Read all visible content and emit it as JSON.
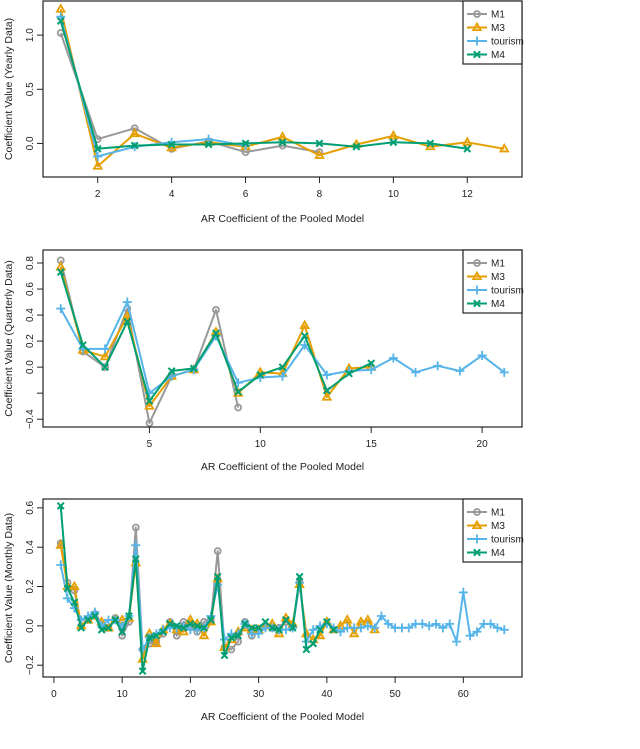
{
  "chart_data": [
    {
      "type": "line",
      "xlabel": "AR Coefficient of the Pooled Model",
      "ylabel": "Coefficient Value (Yearly Data)",
      "xlim": [
        0.52,
        13.48
      ],
      "ylim": [
        -0.31,
        1.315
      ],
      "xticks": [
        2,
        4,
        6,
        8,
        10,
        12
      ],
      "xtick_labels": [
        "2",
        "4",
        "6",
        "8",
        "10",
        "12"
      ],
      "yticks": [
        0.0,
        0.5,
        1.0
      ],
      "ytick_labels": [
        "0.0",
        "0.5",
        "1.0"
      ],
      "grid": false,
      "legend": "top-right",
      "series": [
        {
          "name": "M1",
          "color": "#999999",
          "marker": "circle",
          "x": [
            1,
            2,
            3,
            4,
            5,
            6,
            7,
            8
          ],
          "values": [
            1.02,
            0.04,
            0.14,
            -0.05,
            0.02,
            -0.08,
            -0.02,
            -0.08
          ]
        },
        {
          "name": "M3",
          "color": "#E69F00",
          "marker": "triangle",
          "x": [
            1,
            2,
            3,
            4,
            5,
            6,
            7,
            8,
            9,
            10,
            11,
            12,
            13
          ],
          "values": [
            1.24,
            -0.21,
            0.09,
            -0.04,
            0.01,
            -0.03,
            0.06,
            -0.11,
            -0.01,
            0.07,
            -0.03,
            0.01,
            -0.05
          ]
        },
        {
          "name": "tourism",
          "color": "#56B4E9",
          "marker": "plus",
          "x": [
            1,
            2,
            3,
            4,
            5,
            6
          ],
          "values": [
            1.17,
            -0.12,
            -0.03,
            0.01,
            0.04,
            -0.02
          ]
        },
        {
          "name": "M4",
          "color": "#009E73",
          "marker": "cross",
          "x": [
            1,
            2,
            3,
            4,
            5,
            6,
            7,
            8,
            9,
            10,
            11,
            12
          ],
          "values": [
            1.13,
            -0.05,
            -0.02,
            -0.01,
            -0.01,
            0.0,
            0.01,
            0.0,
            -0.03,
            0.01,
            0.0,
            -0.05
          ]
        }
      ]
    },
    {
      "type": "line",
      "xlabel": "AR Coefficient of the Pooled Model",
      "ylabel": "Coefficient Value (Quarterly Data)",
      "xlim": [
        0.2,
        21.8
      ],
      "ylim": [
        -0.46,
        0.9
      ],
      "xticks": [
        5,
        10,
        15,
        20
      ],
      "xtick_labels": [
        "5",
        "10",
        "15",
        "20"
      ],
      "yticks": [
        -0.4,
        -0.2,
        0.0,
        0.2,
        0.4,
        0.6,
        0.8
      ],
      "ytick_labels": [
        "−0.4",
        "",
        "0.0",
        "0.2",
        "0.4",
        "0.6",
        "0.8"
      ],
      "grid": false,
      "legend": "top-right",
      "series": [
        {
          "name": "M1",
          "color": "#999999",
          "marker": "circle",
          "x": [
            1,
            2,
            3,
            4,
            5,
            6,
            7,
            8,
            9
          ],
          "values": [
            0.82,
            0.12,
            0.0,
            0.45,
            -0.43,
            -0.07,
            -0.02,
            0.44,
            -0.31
          ]
        },
        {
          "name": "M3",
          "color": "#E69F00",
          "marker": "triangle",
          "x": [
            1,
            2,
            3,
            4,
            5,
            6,
            7,
            8,
            9,
            10,
            11,
            12,
            13,
            14,
            15
          ],
          "values": [
            0.77,
            0.13,
            0.08,
            0.39,
            -0.3,
            -0.07,
            -0.02,
            0.27,
            -0.2,
            -0.04,
            -0.05,
            0.32,
            -0.23,
            -0.01,
            0.0
          ]
        },
        {
          "name": "tourism",
          "color": "#56B4E9",
          "marker": "plus",
          "x": [
            1,
            2,
            3,
            4,
            5,
            6,
            7,
            8,
            9,
            10,
            11,
            12,
            13,
            14,
            15,
            16,
            17,
            18,
            19,
            20,
            21
          ],
          "values": [
            0.45,
            0.14,
            0.14,
            0.5,
            -0.2,
            -0.07,
            -0.02,
            0.24,
            -0.12,
            -0.08,
            -0.07,
            0.17,
            -0.06,
            -0.03,
            -0.02,
            0.07,
            -0.04,
            0.01,
            -0.03,
            0.09,
            -0.04
          ]
        },
        {
          "name": "M4",
          "color": "#009E73",
          "marker": "cross",
          "x": [
            1,
            2,
            3,
            4,
            5,
            6,
            7,
            8,
            9,
            10,
            11,
            12,
            13,
            14,
            15
          ],
          "values": [
            0.73,
            0.17,
            0.0,
            0.35,
            -0.26,
            -0.03,
            -0.01,
            0.26,
            -0.19,
            -0.06,
            0.0,
            0.24,
            -0.18,
            -0.05,
            0.03
          ]
        }
      ]
    },
    {
      "type": "line",
      "xlabel": "AR Coefficient of the Pooled Model",
      "ylabel": "Coefficient Value (Monthly Data)",
      "xlim": [
        -1.6,
        68.6
      ],
      "ylim": [
        -0.26,
        0.645
      ],
      "xticks": [
        0,
        10,
        20,
        30,
        40,
        50,
        60
      ],
      "xtick_labels": [
        "0",
        "10",
        "20",
        "30",
        "40",
        "50",
        "60"
      ],
      "yticks": [
        -0.2,
        0.0,
        0.2,
        0.4,
        0.6
      ],
      "ytick_labels": [
        "−0.2",
        "0.0",
        "0.2",
        "0.4",
        "0.6"
      ],
      "grid": false,
      "legend": "top-right",
      "series": [
        {
          "name": "M1",
          "color": "#999999",
          "marker": "circle",
          "x": [
            1,
            2,
            3,
            4,
            5,
            6,
            7,
            8,
            9,
            10,
            11,
            12,
            13,
            14,
            15,
            16,
            17,
            18,
            19,
            20,
            21,
            22,
            23,
            24,
            25,
            26,
            27,
            28,
            29,
            30,
            31,
            32,
            33,
            34,
            35,
            36
          ],
          "values": [
            0.42,
            0.22,
            0.18,
            0.0,
            0.03,
            0.06,
            0.0,
            -0.01,
            0.04,
            -0.05,
            0.02,
            0.5,
            -0.12,
            -0.09,
            -0.08,
            -0.04,
            0.02,
            -0.05,
            0.02,
            0.0,
            -0.03,
            0.02,
            0.03,
            0.38,
            -0.11,
            -0.12,
            -0.08,
            0.02,
            -0.05,
            -0.02,
            0.0,
            -0.01,
            -0.01,
            0.02,
            0.0,
            0.22
          ]
        },
        {
          "name": "M3",
          "color": "#E69F00",
          "marker": "triangle",
          "x": [
            1,
            2,
            3,
            4,
            5,
            6,
            7,
            8,
            9,
            10,
            11,
            12,
            13,
            14,
            15,
            16,
            17,
            18,
            19,
            20,
            21,
            22,
            23,
            24,
            25,
            26,
            27,
            28,
            29,
            30,
            31,
            32,
            33,
            34,
            35,
            36,
            37,
            38,
            39,
            40,
            41,
            42,
            43,
            44,
            45,
            46,
            47
          ],
          "values": [
            0.41,
            0.2,
            0.2,
            0.0,
            0.03,
            0.05,
            0.02,
            -0.01,
            0.03,
            0.03,
            0.04,
            0.32,
            -0.17,
            -0.04,
            -0.09,
            -0.02,
            0.01,
            -0.02,
            -0.03,
            0.03,
            0.01,
            -0.05,
            0.02,
            0.24,
            -0.11,
            -0.07,
            -0.03,
            -0.01,
            -0.02,
            -0.02,
            0.0,
            0.01,
            -0.04,
            0.04,
            0.01,
            0.21,
            -0.04,
            -0.07,
            -0.05,
            0.02,
            -0.02,
            0.0,
            0.03,
            -0.04,
            0.02,
            0.03,
            -0.02
          ]
        },
        {
          "name": "tourism",
          "color": "#56B4E9",
          "marker": "plus",
          "x": [
            1,
            2,
            3,
            4,
            5,
            6,
            7,
            8,
            9,
            10,
            11,
            12,
            13,
            14,
            15,
            16,
            17,
            18,
            19,
            20,
            21,
            22,
            23,
            24,
            25,
            26,
            27,
            28,
            29,
            30,
            31,
            32,
            33,
            34,
            35,
            36,
            37,
            38,
            39,
            40,
            41,
            42,
            43,
            44,
            45,
            46,
            47,
            48,
            49,
            50,
            51,
            52,
            53,
            54,
            55,
            56,
            57,
            58,
            59,
            60,
            61,
            62,
            63,
            64,
            65,
            66
          ],
          "values": [
            0.31,
            0.14,
            0.09,
            0.03,
            0.05,
            0.07,
            0.0,
            0.03,
            0.03,
            0.0,
            0.05,
            0.41,
            -0.12,
            -0.06,
            -0.04,
            -0.02,
            -0.01,
            -0.01,
            0.0,
            -0.02,
            -0.02,
            -0.01,
            0.05,
            0.21,
            -0.07,
            -0.04,
            -0.04,
            0.01,
            -0.04,
            -0.04,
            -0.01,
            -0.01,
            -0.02,
            -0.02,
            -0.01,
            0.22,
            -0.08,
            -0.02,
            0.0,
            0.01,
            -0.01,
            -0.03,
            -0.01,
            -0.01,
            -0.01,
            0.0,
            -0.01,
            0.05,
            0.01,
            -0.01,
            -0.01,
            -0.01,
            0.01,
            0.01,
            0.0,
            0.01,
            -0.01,
            0.01,
            -0.08,
            0.17,
            -0.05,
            -0.03,
            0.01,
            0.01,
            -0.01,
            -0.02
          ]
        },
        {
          "name": "M4",
          "color": "#009E73",
          "marker": "cross",
          "x": [
            1,
            2,
            3,
            4,
            5,
            6,
            7,
            8,
            9,
            10,
            11,
            12,
            13,
            14,
            15,
            16,
            17,
            18,
            19,
            20,
            21,
            22,
            23,
            24,
            25,
            26,
            27,
            28,
            29,
            30,
            31,
            32,
            33,
            34,
            35,
            36,
            37,
            38,
            39,
            40,
            41
          ],
          "values": [
            0.61,
            0.19,
            0.12,
            -0.01,
            0.03,
            0.05,
            -0.02,
            -0.01,
            0.03,
            -0.03,
            0.05,
            0.34,
            -0.23,
            -0.06,
            -0.05,
            -0.03,
            0.01,
            0.0,
            -0.01,
            0.01,
            0.0,
            -0.01,
            0.03,
            0.25,
            -0.15,
            -0.06,
            -0.05,
            0.01,
            -0.01,
            -0.01,
            0.02,
            -0.01,
            -0.02,
            0.03,
            -0.01,
            0.25,
            -0.12,
            -0.09,
            -0.02,
            0.02,
            -0.02
          ]
        }
      ]
    }
  ]
}
